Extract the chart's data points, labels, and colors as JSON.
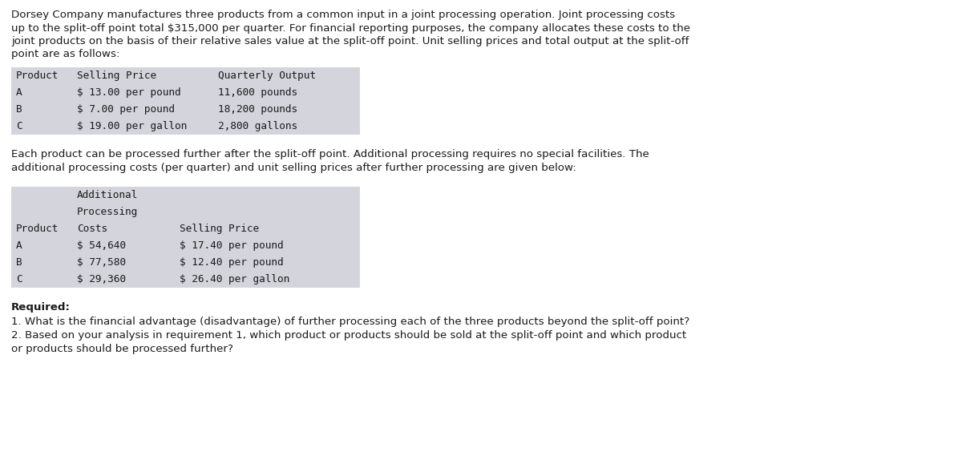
{
  "bg_color": "#ffffff",
  "text_color": "#1a1a1a",
  "table1_bg": "#d4d4dc",
  "table2_bg": "#d4d4dc",
  "paragraph1": "Dorsey Company manufactures three products from a common input in a joint processing operation. Joint processing costs\nup to the split-off point total $315,000 per quarter. For financial reporting purposes, the company allocates these costs to the\njoint products on the basis of their relative sales value at the split-off point. Unit selling prices and total output at the split-off\npoint are as follows:",
  "table1_headers": [
    "Product",
    "Selling Price",
    "Quarterly Output"
  ],
  "table1_rows": [
    [
      "A",
      "$ 13.00 per pound",
      "11,600 pounds"
    ],
    [
      "B",
      "$ 7.00 per pound",
      "18,200 pounds"
    ],
    [
      "C",
      "$ 19.00 per gallon",
      "2,800 gallons"
    ]
  ],
  "paragraph2": "Each product can be processed further after the split-off point. Additional processing requires no special facilities. The\nadditional processing costs (per quarter) and unit selling prices after further processing are given below:",
  "table2_header_rows": [
    [
      "",
      "Additional",
      ""
    ],
    [
      "",
      "Processing",
      ""
    ],
    [
      "Product",
      "Costs",
      "Selling Price"
    ]
  ],
  "table2_rows": [
    [
      "A",
      "$ 54,640",
      "$ 17.40 per pound"
    ],
    [
      "B",
      "$ 77,580",
      "$ 12.40 per pound"
    ],
    [
      "C",
      "$ 29,360",
      "$ 26.40 per gallon"
    ]
  ],
  "required_bold": "Required:",
  "required_items": [
    "1. What is the financial advantage (disadvantage) of further processing each of the three products beyond the split-off point?",
    "2. Based on your analysis in requirement 1, which product or products should be sold at the split-off point and which product",
    "or products should be processed further?"
  ],
  "figw": 12.0,
  "figh": 5.84,
  "dpi": 100
}
